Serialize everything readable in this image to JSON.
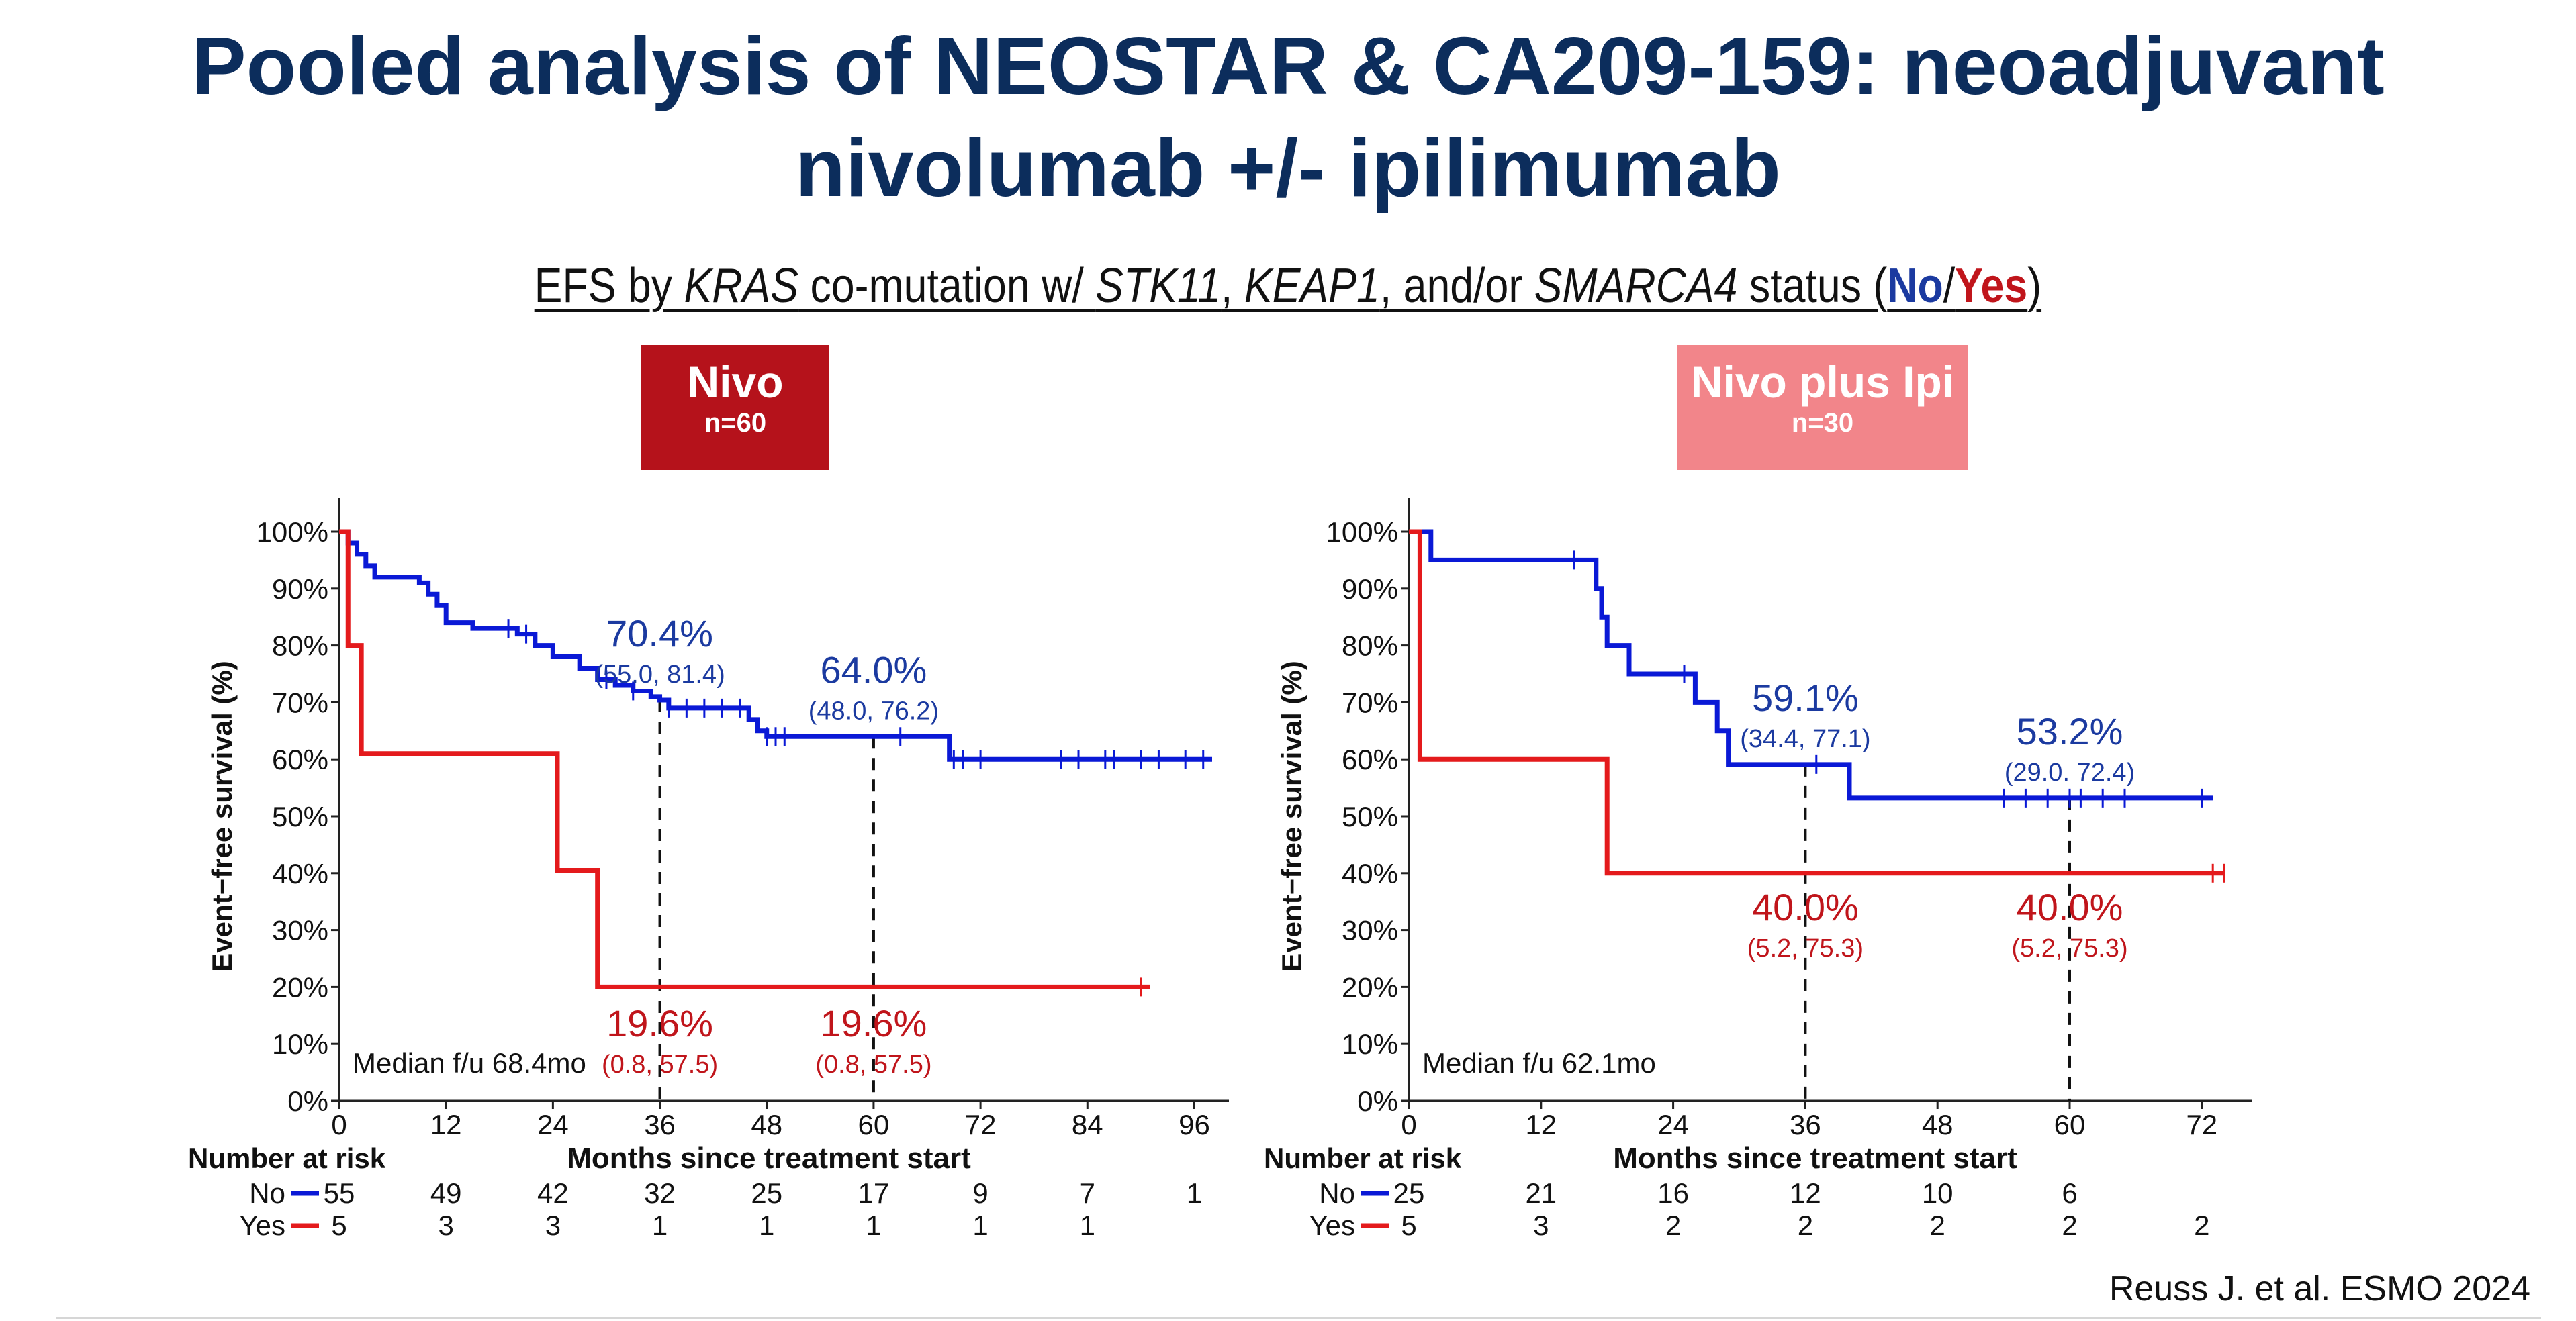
{
  "title": {
    "line1": "Pooled analysis of NEOSTAR & CA209-159: neoadjuvant",
    "line2": "nivolumab +/- ipilimumab"
  },
  "subtitle": {
    "part1": "EFS by ",
    "kras": "KRAS",
    "part2": " co-mutation w/ ",
    "stk11": "STK11",
    "comma": ", ",
    "keap1": "KEAP1",
    "part3": ", and/or ",
    "smarca4": "SMARCA4",
    "part4": " status (",
    "no": "No",
    "slash": "/",
    "yes": "Yes",
    "close": ")"
  },
  "arms": [
    {
      "label": "Nivo",
      "n": "n=60",
      "color": "#b5121b"
    },
    {
      "label": "Nivo plus Ipi",
      "n": "n=30",
      "color": "#f2858a"
    }
  ],
  "colors": {
    "no": "#0a19d6",
    "yes": "#e41a1c",
    "annot_no": "#1b3aa0",
    "annot_yes": "#c0151b"
  },
  "citation": "Reuss J. et al. ESMO 2024",
  "chart_data": [
    {
      "type": "line",
      "title": "Nivo",
      "xlabel": "Months since treatment start",
      "ylabel": "Event−free survival (%)",
      "xlim": [
        0,
        98
      ],
      "ylim": [
        0,
        100
      ],
      "x_ticks": [
        0,
        12,
        24,
        36,
        48,
        60,
        72,
        84,
        96
      ],
      "y_ticks": [
        "0%",
        "10%",
        "20%",
        "30%",
        "40%",
        "50%",
        "60%",
        "70%",
        "80%",
        "90%",
        "100%"
      ],
      "median_followup": "Median f/u 68.4mo",
      "series": [
        {
          "name": "No",
          "color": "#0a19d6",
          "steps": [
            [
              0,
              100
            ],
            [
              1,
              98
            ],
            [
              2,
              96
            ],
            [
              3,
              94
            ],
            [
              4,
              92
            ],
            [
              9,
              91
            ],
            [
              10,
              89
            ],
            [
              11,
              87
            ],
            [
              12,
              84
            ],
            [
              15,
              83
            ],
            [
              20,
              82
            ],
            [
              22,
              80
            ],
            [
              24,
              78
            ],
            [
              27,
              76
            ],
            [
              29,
              74
            ],
            [
              31,
              73
            ],
            [
              33,
              72
            ],
            [
              35,
              71
            ],
            [
              36,
              70.4
            ],
            [
              37,
              69
            ],
            [
              42,
              69
            ],
            [
              45,
              69
            ],
            [
              46,
              67
            ],
            [
              47,
              65
            ],
            [
              48,
              64
            ],
            [
              68,
              64
            ],
            [
              68.5,
              60
            ],
            [
              98,
              60
            ]
          ],
          "censors": [
            19,
            21,
            30,
            33,
            37,
            39,
            41,
            43,
            45,
            48,
            49,
            50,
            63,
            69,
            70,
            72,
            81,
            83,
            86,
            87,
            90,
            92,
            95,
            97
          ]
        },
        {
          "name": "Yes",
          "color": "#e41a1c",
          "steps": [
            [
              0,
              100
            ],
            [
              1,
              80
            ],
            [
              2.5,
              61
            ],
            [
              24.5,
              61
            ],
            [
              24.5,
              40.5
            ],
            [
              29,
              40.5
            ],
            [
              29,
              20
            ],
            [
              91,
              20
            ]
          ],
          "censors": [
            90
          ]
        }
      ],
      "annotations": [
        {
          "x": 36,
          "series": "No",
          "value": "70.4%",
          "ci": "(55.0, 81.4)"
        },
        {
          "x": 60,
          "series": "No",
          "value": "64.0%",
          "ci": "(48.0, 76.2)"
        },
        {
          "x": 36,
          "series": "Yes",
          "value": "19.6%",
          "ci": "(0.8, 57.5)"
        },
        {
          "x": 60,
          "series": "Yes",
          "value": "19.6%",
          "ci": "(0.8, 57.5)"
        }
      ],
      "risk_table": {
        "title": "Number at risk",
        "times": [
          0,
          12,
          24,
          36,
          48,
          60,
          72,
          84,
          96
        ],
        "rows": [
          {
            "label": "No",
            "values": [
              "55",
              "49",
              "42",
              "32",
              "25",
              "17",
              "9",
              "7",
              "1"
            ]
          },
          {
            "label": "Yes",
            "values": [
              "5",
              "3",
              "3",
              "1",
              "1",
              "1",
              "1",
              "1",
              ""
            ]
          }
        ]
      }
    },
    {
      "type": "line",
      "title": "Nivo plus Ipi",
      "xlabel": "Months since treatment start",
      "ylabel": "Event−free survival (%)",
      "xlim": [
        0,
        75
      ],
      "ylim": [
        0,
        100
      ],
      "x_ticks": [
        0,
        12,
        24,
        36,
        48,
        60,
        72
      ],
      "y_ticks": [
        "0%",
        "10%",
        "20%",
        "30%",
        "40%",
        "50%",
        "60%",
        "70%",
        "80%",
        "90%",
        "100%"
      ],
      "median_followup": "Median f/u 62.1mo",
      "series": [
        {
          "name": "No",
          "color": "#0a19d6",
          "steps": [
            [
              0,
              100
            ],
            [
              2,
              100
            ],
            [
              2,
              95
            ],
            [
              17,
              95
            ],
            [
              17,
              90
            ],
            [
              17.5,
              85
            ],
            [
              18,
              80
            ],
            [
              20,
              75
            ],
            [
              26,
              75
            ],
            [
              26,
              70
            ],
            [
              28,
              70
            ],
            [
              28,
              65
            ],
            [
              29,
              59.1
            ],
            [
              40,
              59.1
            ],
            [
              40,
              53.2
            ],
            [
              73,
              53.2
            ]
          ],
          "censors": [
            15,
            25,
            37,
            54,
            56,
            58,
            60,
            61,
            63,
            65,
            72
          ]
        },
        {
          "name": "Yes",
          "color": "#e41a1c",
          "steps": [
            [
              0,
              100
            ],
            [
              1,
              80
            ],
            [
              1,
              60
            ],
            [
              18,
              60
            ],
            [
              18,
              40
            ],
            [
              74,
              40
            ]
          ],
          "censors": [
            73,
            74
          ]
        }
      ],
      "annotations": [
        {
          "x": 36,
          "series": "No",
          "value": "59.1%",
          "ci": "(34.4, 77.1)"
        },
        {
          "x": 60,
          "series": "No",
          "value": "53.2%",
          "ci": "(29.0. 72.4)"
        },
        {
          "x": 36,
          "series": "Yes",
          "value": "40.0%",
          "ci": "(5.2, 75.3)"
        },
        {
          "x": 60,
          "series": "Yes",
          "value": "40.0%",
          "ci": "(5.2, 75.3)"
        }
      ],
      "risk_table": {
        "title": "Number at risk",
        "times": [
          0,
          12,
          24,
          36,
          48,
          60,
          72
        ],
        "rows": [
          {
            "label": "No",
            "values": [
              "25",
              "21",
              "16",
              "12",
              "10",
              "6",
              ""
            ]
          },
          {
            "label": "Yes",
            "values": [
              "5",
              "3",
              "2",
              "2",
              "2",
              "2",
              "2"
            ]
          }
        ]
      }
    }
  ]
}
